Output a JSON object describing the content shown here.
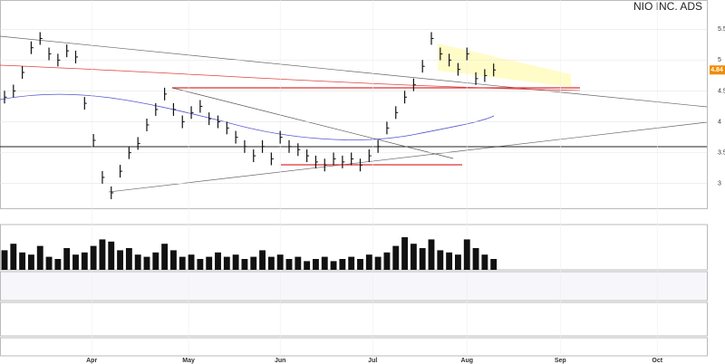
{
  "chart_data": {
    "type": "ohlc",
    "title": "NIO INC. ADS",
    "closes": [
      4.4,
      4.5,
      4.8,
      5.2,
      5.35,
      5.1,
      5.0,
      5.15,
      5.05,
      4.3,
      3.7,
      3.1,
      2.85,
      3.2,
      3.5,
      3.65,
      3.95,
      4.2,
      4.45,
      4.2,
      4.0,
      4.15,
      4.25,
      4.05,
      4.0,
      3.9,
      3.75,
      3.6,
      3.45,
      3.6,
      3.4,
      3.75,
      3.6,
      3.55,
      3.45,
      3.35,
      3.3,
      3.4,
      3.35,
      3.4,
      3.3,
      3.45,
      3.6,
      3.9,
      4.15,
      4.4,
      4.6,
      4.9,
      5.35,
      5.1,
      5.0,
      4.85,
      5.1,
      4.7,
      4.75,
      4.84
    ],
    "volume": [
      45,
      60,
      40,
      35,
      55,
      30,
      25,
      50,
      35,
      40,
      55,
      70,
      65,
      45,
      50,
      35,
      30,
      40,
      60,
      45,
      30,
      35,
      25,
      30,
      40,
      30,
      35,
      25,
      30,
      45,
      30,
      35,
      25,
      30,
      20,
      25,
      30,
      20,
      25,
      30,
      25,
      35,
      30,
      40,
      55,
      75,
      60,
      50,
      70,
      45,
      40,
      35,
      70,
      50,
      35,
      25
    ],
    "last_price_label": "4.84",
    "x_labels": [
      {
        "index": 9.8,
        "label": "Apr"
      },
      {
        "index": 20.7,
        "label": "May"
      },
      {
        "index": 31,
        "label": "Jun"
      },
      {
        "index": 41.4,
        "label": "Jul"
      },
      {
        "index": 52,
        "label": "Aug"
      },
      {
        "index": 62.5,
        "label": "Sep"
      },
      {
        "index": 73.4,
        "label": "Oct"
      }
    ],
    "slots": 80,
    "ylim": [
      2.6,
      5.9
    ],
    "yticks": [
      3,
      3.5,
      4,
      4.5,
      5,
      5.5
    ],
    "vol_ylim": [
      0,
      100
    ],
    "color": "#111111",
    "volume_color": "#111111"
  }
}
